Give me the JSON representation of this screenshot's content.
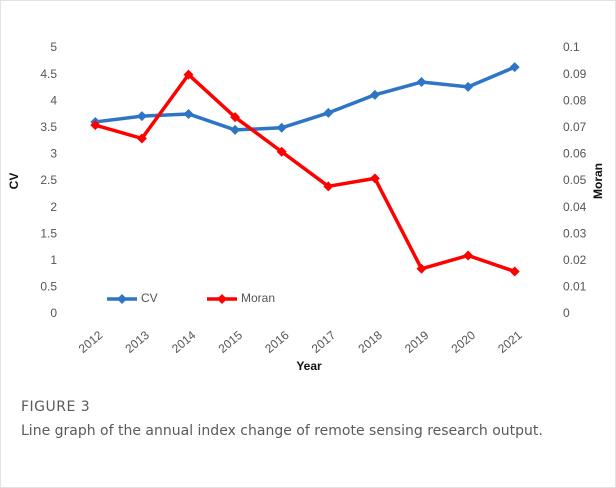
{
  "chart_data": {
    "type": "line",
    "categories": [
      "2012",
      "2013",
      "2014",
      "2015",
      "2016",
      "2017",
      "2018",
      "2019",
      "2020",
      "2021"
    ],
    "series": [
      {
        "name": "CV",
        "color": "#2e75c6",
        "values": [
          3.61,
          3.72,
          3.76,
          3.46,
          3.5,
          3.78,
          4.12,
          4.36,
          4.27,
          4.64
        ]
      },
      {
        "name": "Moran",
        "color": "#ff0000",
        "axis": "y2",
        "values": [
          0.071,
          0.066,
          0.09,
          0.074,
          0.061,
          0.048,
          0.051,
          0.017,
          0.022,
          0.016
        ]
      }
    ],
    "ylim": [
      0,
      5
    ],
    "yticks": [
      0,
      0.5,
      1,
      1.5,
      2,
      2.5,
      3,
      3.5,
      4,
      4.5,
      5
    ],
    "y2lim": [
      0,
      0.1
    ],
    "y2ticks": [
      0,
      0.01,
      0.02,
      0.03,
      0.04,
      0.05,
      0.06,
      0.07,
      0.08,
      0.09,
      0.1
    ],
    "xlabel": "Year",
    "ylabel": "CV",
    "y2label": "Moran",
    "grid": false,
    "legend": "lower left"
  },
  "figure": {
    "label": "FIGURE 3",
    "caption": "Line graph of the annual index change of remote sensing research output."
  }
}
